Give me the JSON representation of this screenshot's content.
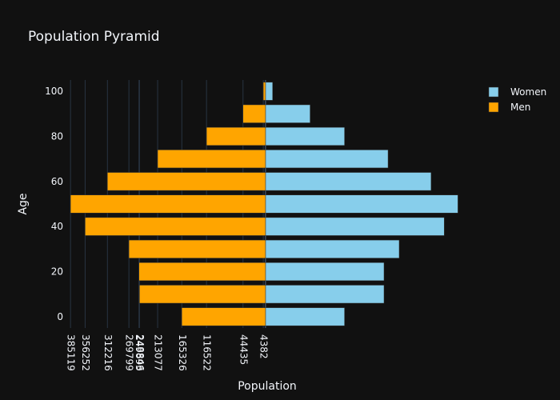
{
  "chart_data": {
    "type": "bar",
    "orientation": "horizontal",
    "barmode": "overlay",
    "title": "Population Pyramid",
    "xlabel": "Population",
    "ylabel": "Age",
    "y_categories": [
      0,
      10,
      20,
      30,
      40,
      50,
      60,
      70,
      80,
      90,
      100
    ],
    "y_ticks": [
      0,
      20,
      40,
      60,
      80,
      100
    ],
    "x_ticks": [
      {
        "value": -385119,
        "label": "385119"
      },
      {
        "value": -356252,
        "label": "356252"
      },
      {
        "value": -312216,
        "label": "312216"
      },
      {
        "value": -269799,
        "label": "269799"
      },
      {
        "value": -249893,
        "label": "249893"
      },
      {
        "value": -248846,
        "label": "248846"
      },
      {
        "value": -213077,
        "label": "213077"
      },
      {
        "value": -165326,
        "label": "165326"
      },
      {
        "value": -116522,
        "label": "116522"
      },
      {
        "value": -44435,
        "label": "44435"
      },
      {
        "value": -4382,
        "label": "4382"
      }
    ],
    "xlim": [
      -398000,
      392000
    ],
    "ylim": [
      -5,
      105
    ],
    "series": [
      {
        "name": "Women",
        "color": "#87ceeb",
        "values": [
          156000,
          234000,
          234000,
          264000,
          353000,
          380000,
          327000,
          242000,
          156000,
          88000,
          14000
        ]
      },
      {
        "name": "Men",
        "color": "#ffa500",
        "values": [
          -165326,
          -248846,
          -249893,
          -269799,
          -356252,
          -385119,
          -312216,
          -213077,
          -116522,
          -44435,
          -4382
        ]
      }
    ],
    "legend_position": "top-right",
    "grid": "vertical"
  }
}
